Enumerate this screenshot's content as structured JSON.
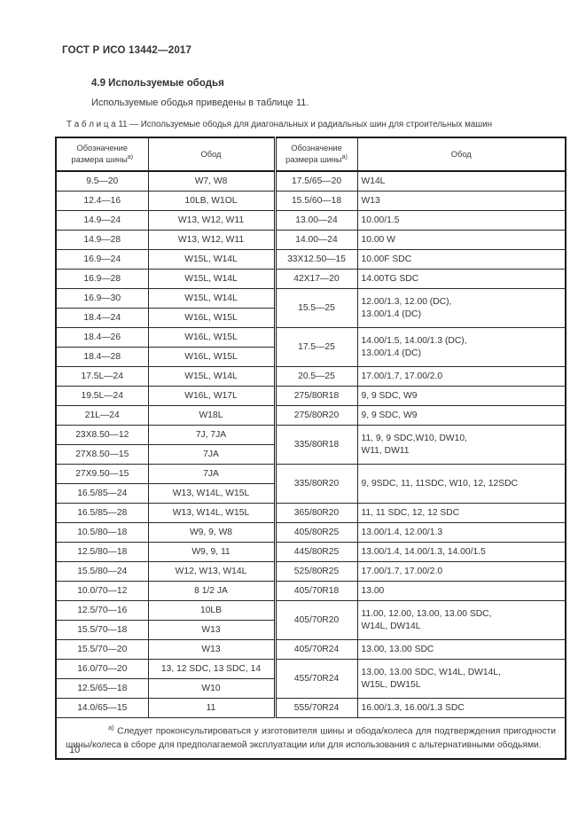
{
  "page": {
    "doc_header": "ГОСТ Р ИСО 13442—2017",
    "section_title": "4.9 Используемые ободья",
    "intro": "Используемые ободья приведены в таблице 11.",
    "page_number": "10"
  },
  "table": {
    "caption": "Т а б л и ц а  11 — Используемые ободья для диагональных и радиальных шин для строительных машин",
    "header": {
      "size_label": "Обозначение размера шины",
      "size_sup": "а)",
      "rim_label": "Обод"
    },
    "rows": [
      {
        "l_size": "9.5—20",
        "l_rim": "W7, W8",
        "r_size": "17.5/65—20",
        "r_rim": "W14L",
        "r_span": 1
      },
      {
        "l_size": "12.4—16",
        "l_rim": "10LB, W1OL",
        "r_size": "15.5/60—18",
        "r_rim": "W13",
        "r_span": 1
      },
      {
        "l_size": "14.9—24",
        "l_rim": "W13, W12, W11",
        "r_size": "13.00—24",
        "r_rim": "10.00/1.5",
        "r_span": 1
      },
      {
        "l_size": "14.9—28",
        "l_rim": "W13, W12, W11",
        "r_size": "14.00—24",
        "r_rim": "10.00 W",
        "r_span": 1
      },
      {
        "l_size": "16.9—24",
        "l_rim": "W15L, W14L",
        "r_size": "33X12.50—15",
        "r_rim": "10.00F SDC",
        "r_span": 1
      },
      {
        "l_size": "16.9—28",
        "l_rim": "W15L, W14L",
        "r_size": "42X17—20",
        "r_rim": "14.00TG SDC",
        "r_span": 1
      },
      {
        "l_size": "16.9—30",
        "l_rim": "W15L, W14L",
        "r_size": "15.5—25",
        "r_rim": "12.00/1.3, 12.00 (DC),\n13.00/1.4 (DC)",
        "r_span": 2
      },
      {
        "l_size": "18.4—24",
        "l_rim": "W16L, W15L"
      },
      {
        "l_size": "18.4—26",
        "l_rim": "W16L, W15L",
        "r_size": "17.5—25",
        "r_rim": "14.00/1.5, 14.00/1.3 (DC),\n13.00/1.4 (DC)",
        "r_span": 2
      },
      {
        "l_size": "18.4—28",
        "l_rim": "W16L, W15L"
      },
      {
        "l_size": "17.5L—24",
        "l_rim": "W15L, W14L",
        "r_size": "20.5—25",
        "r_rim": "17.00/1.7, 17.00/2.0",
        "r_span": 1
      },
      {
        "l_size": "19.5L—24",
        "l_rim": "W16L, W17L",
        "r_size": "275/80R18",
        "r_rim": "9, 9 SDC, W9",
        "r_span": 1
      },
      {
        "l_size": "21L—24",
        "l_rim": "W18L",
        "r_size": "275/80R20",
        "r_rim": "9, 9 SDC, W9",
        "r_span": 1
      },
      {
        "l_size": "23X8.50—12",
        "l_rim": "7J, 7JA",
        "r_size": "335/80R18",
        "r_rim": "11, 9, 9 SDC,W10, DW10,\nW11, DW11",
        "r_span": 2
      },
      {
        "l_size": "27X8.50—15",
        "l_rim": "7JA"
      },
      {
        "l_size": "27X9.50—15",
        "l_rim": "7JA",
        "r_size": "335/80R20",
        "r_rim": "9, 9SDC, 11, 11SDC, W10, 12, 12SDC",
        "r_span": 2
      },
      {
        "l_size": "16.5/85—24",
        "l_rim": "W13, W14L, W15L"
      },
      {
        "l_size": "16.5/85—28",
        "l_rim": "W13, W14L, W15L",
        "r_size": "365/80R20",
        "r_rim": "11, 11 SDC, 12, 12 SDC",
        "r_span": 1
      },
      {
        "l_size": "10.5/80—18",
        "l_rim": "W9, 9, W8",
        "r_size": "405/80R25",
        "r_rim": "13.00/1.4, 12.00/1.3",
        "r_span": 1
      },
      {
        "l_size": "12.5/80—18",
        "l_rim": "W9, 9, 11",
        "r_size": "445/80R25",
        "r_rim": "13.00/1.4, 14.00/1.3, 14.00/1.5",
        "r_span": 1
      },
      {
        "l_size": "15.5/80—24",
        "l_rim": "W12, W13, W14L",
        "r_size": "525/80R25",
        "r_rim": "17.00/1.7, 17.00/2.0",
        "r_span": 1
      },
      {
        "l_size": "10.0/70—12",
        "l_rim": "8 1/2 JA",
        "r_size": "405/70R18",
        "r_rim": "13.00",
        "r_span": 1
      },
      {
        "l_size": "12.5/70—16",
        "l_rim": "10LB",
        "r_size": "405/70R20",
        "r_rim": "11.00, 12.00, 13.00, 13.00 SDC,\nW14L, DW14L",
        "r_span": 2
      },
      {
        "l_size": "15.5/70—18",
        "l_rim": "W13"
      },
      {
        "l_size": "15.5/70—20",
        "l_rim": "W13",
        "r_size": "405/70R24",
        "r_rim": "13.00, 13.00 SDC",
        "r_span": 1
      },
      {
        "l_size": "16.0/70—20",
        "l_rim": "13, 12 SDC, 13 SDC, 14",
        "r_size": "455/70R24",
        "r_rim": "13.00, 13.00 SDC, W14L, DW14L,\nW15L, DW15L",
        "r_span": 2
      },
      {
        "l_size": "12.5/65—18",
        "l_rim": "W10"
      },
      {
        "l_size": "14.0/65—15",
        "l_rim": "11",
        "r_size": "555/70R24",
        "r_rim": "16.00/1.3, 16.00/1.3 SDC",
        "r_span": 1
      }
    ],
    "footnote": {
      "sup": "а)",
      "text": "Следует проконсультироваться у изготовителя шины и обода/колеса для подтверждения пригодности шины/колеса в сборе для предполагаемой эксплуатации или для использования с альтернативными ободьями."
    }
  }
}
